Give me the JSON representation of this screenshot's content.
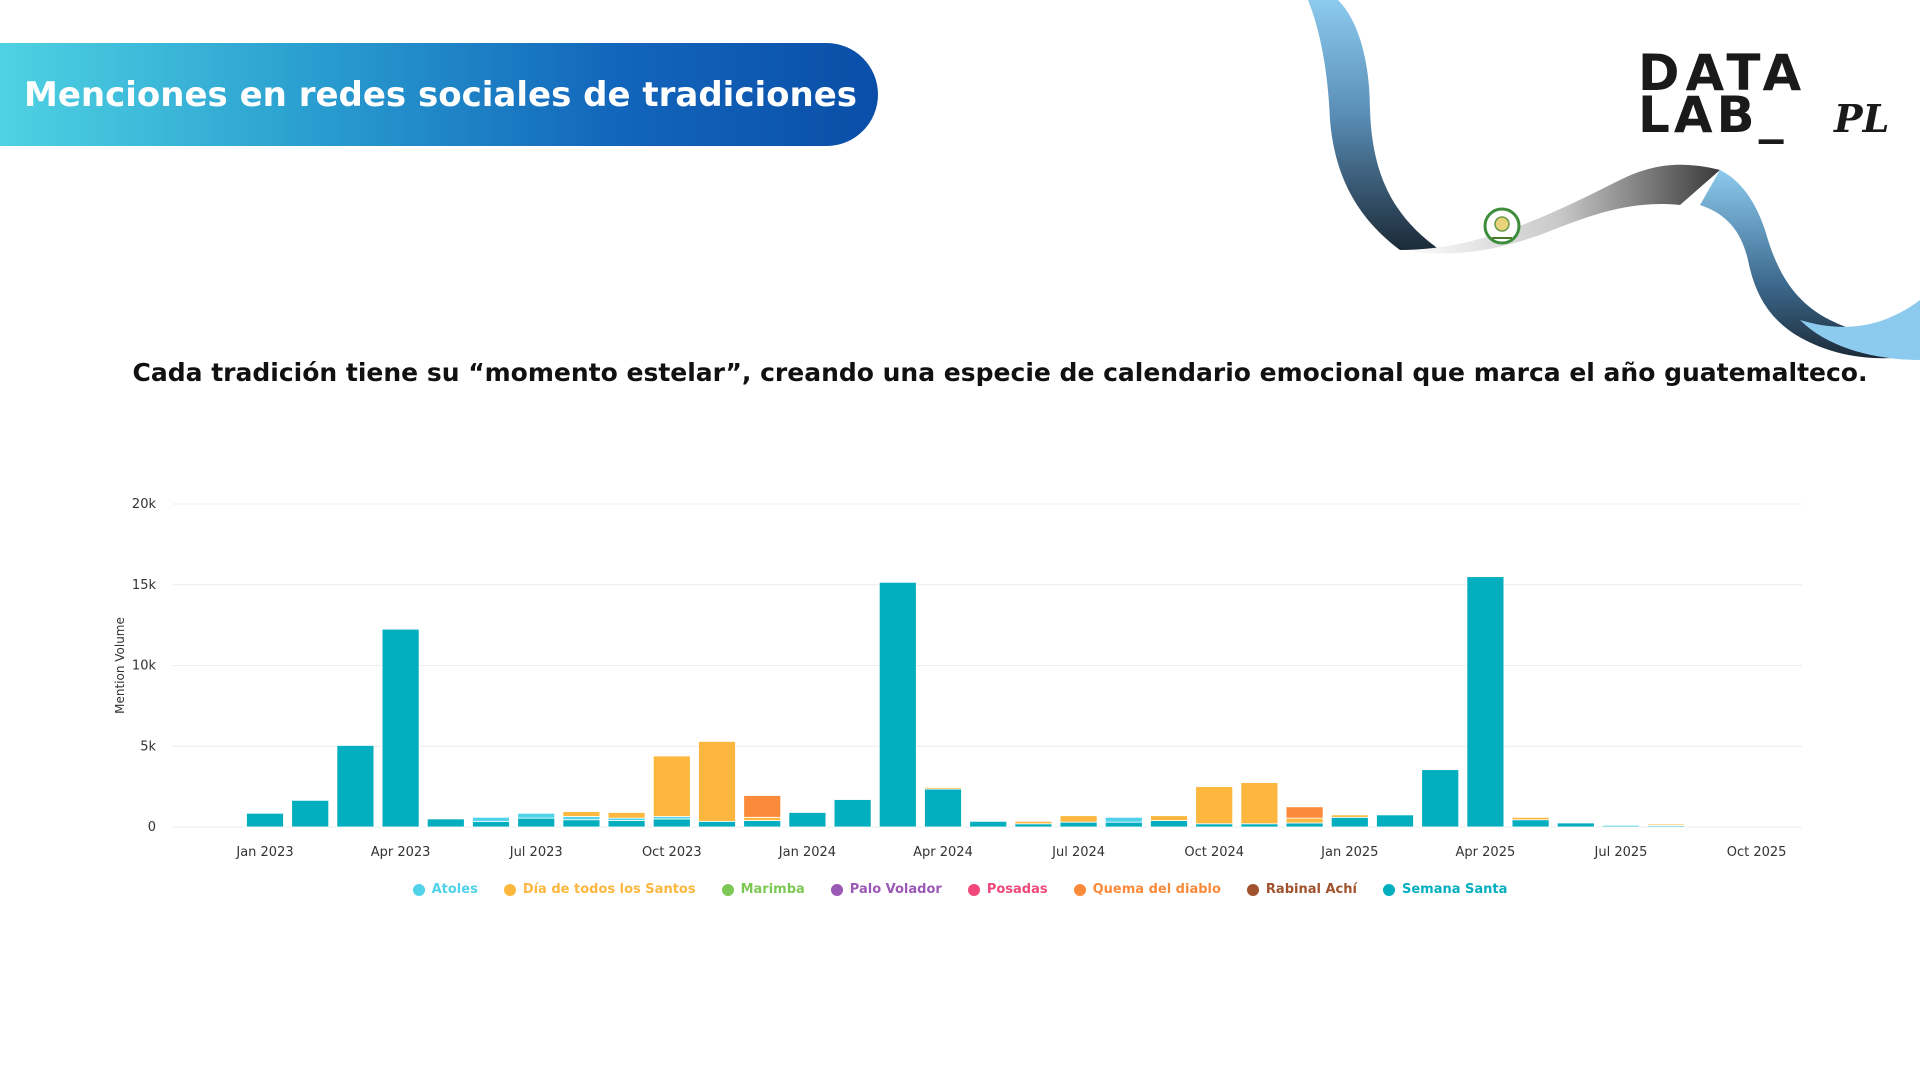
{
  "header": {
    "title": "Menciones en redes sociales de tradiciones"
  },
  "logo": {
    "line1": "DATA",
    "line2": "LAB_",
    "suffix": "PL"
  },
  "subtitle": "Cada tradición tiene su “momento estelar”, creando una especie de calendario emocional que marca el año guatemalteco.",
  "colors": {
    "banner_start": "#4fd2e2",
    "banner_end": "#0a4ea8",
    "ribbon_blue": "#8ccaee",
    "ribbon_dark": "#1c2a38"
  },
  "chart_data": {
    "type": "bar",
    "stacked": true,
    "ylabel": "Mention Volume",
    "xlabel": "",
    "ylim": [
      0,
      20000
    ],
    "yticks": [
      {
        "value": 0,
        "label": "0"
      },
      {
        "value": 5000,
        "label": "5k"
      },
      {
        "value": 10000,
        "label": "10k"
      },
      {
        "value": 15000,
        "label": "15k"
      },
      {
        "value": 20000,
        "label": "20k"
      }
    ],
    "xticks": [
      {
        "index": 0,
        "label": "Jan 2023"
      },
      {
        "index": 3,
        "label": "Apr 2023"
      },
      {
        "index": 6,
        "label": "Jul 2023"
      },
      {
        "index": 9,
        "label": "Oct 2023"
      },
      {
        "index": 12,
        "label": "Jan 2024"
      },
      {
        "index": 15,
        "label": "Apr 2024"
      },
      {
        "index": 18,
        "label": "Jul 2024"
      },
      {
        "index": 21,
        "label": "Oct 2024"
      },
      {
        "index": 24,
        "label": "Jan 2025"
      },
      {
        "index": 27,
        "label": "Apr 2025"
      },
      {
        "index": 30,
        "label": "Jul 2025"
      },
      {
        "index": 33,
        "label": "Oct 2025"
      }
    ],
    "categories": [
      "2023-01",
      "2023-02",
      "2023-03",
      "2023-04",
      "2023-05",
      "2023-06",
      "2023-07",
      "2023-08",
      "2023-09",
      "2023-10",
      "2023-11",
      "2023-12",
      "2024-01",
      "2024-02",
      "2024-03",
      "2024-04",
      "2024-05",
      "2024-06",
      "2024-07",
      "2024-08",
      "2024-09",
      "2024-10",
      "2024-11",
      "2024-12",
      "2025-01",
      "2025-02",
      "2025-03",
      "2025-04",
      "2025-05",
      "2025-06",
      "2025-07",
      "2025-08"
    ],
    "grid": true,
    "legend_position": "bottom",
    "series": [
      {
        "name": "Semana Santa",
        "color": "#03aebe",
        "values": [
          850,
          1650,
          5050,
          12250,
          500,
          350,
          550,
          450,
          400,
          500,
          350,
          400,
          900,
          1700,
          15150,
          2350,
          350,
          200,
          300,
          300,
          400,
          200,
          200,
          250,
          600,
          750,
          3550,
          15500,
          450,
          250,
          80,
          80
        ]
      },
      {
        "name": "Atoles",
        "color": "#4fd2ea",
        "values": [
          0,
          0,
          0,
          0,
          0,
          250,
          300,
          200,
          150,
          150,
          0,
          0,
          0,
          0,
          0,
          0,
          0,
          0,
          0,
          300,
          0,
          0,
          0,
          0,
          0,
          0,
          0,
          0,
          0,
          0,
          70,
          50
        ]
      },
      {
        "name": "Día de todos los Santos",
        "color": "#fdb73e",
        "values": [
          0,
          0,
          0,
          0,
          0,
          0,
          0,
          300,
          350,
          3750,
          4950,
          200,
          0,
          0,
          0,
          100,
          0,
          150,
          400,
          0,
          300,
          2300,
          2550,
          300,
          150,
          0,
          0,
          0,
          150,
          0,
          0,
          80
        ]
      },
      {
        "name": "Marimba",
        "color": "#7dc855",
        "values": [
          0,
          0,
          0,
          0,
          0,
          0,
          0,
          0,
          0,
          0,
          0,
          0,
          0,
          0,
          0,
          0,
          0,
          0,
          0,
          0,
          0,
          0,
          0,
          0,
          0,
          0,
          0,
          0,
          0,
          0,
          0,
          50
        ]
      },
      {
        "name": "Palo Volador",
        "color": "#9b59b6",
        "values": [
          0,
          0,
          0,
          0,
          0,
          0,
          0,
          0,
          0,
          0,
          0,
          0,
          0,
          0,
          0,
          0,
          0,
          0,
          0,
          0,
          0,
          0,
          0,
          0,
          0,
          0,
          0,
          0,
          0,
          0,
          0,
          0
        ]
      },
      {
        "name": "Posadas",
        "color": "#f0487a",
        "values": [
          0,
          0,
          0,
          0,
          0,
          0,
          0,
          0,
          0,
          0,
          0,
          0,
          0,
          0,
          0,
          0,
          0,
          0,
          0,
          0,
          0,
          0,
          0,
          0,
          0,
          0,
          0,
          0,
          0,
          0,
          0,
          0
        ]
      },
      {
        "name": "Quema del diablo",
        "color": "#fb8b3a",
        "values": [
          0,
          0,
          0,
          0,
          0,
          0,
          0,
          0,
          0,
          0,
          0,
          1350,
          0,
          0,
          0,
          0,
          0,
          0,
          0,
          0,
          0,
          0,
          0,
          700,
          0,
          0,
          0,
          0,
          0,
          0,
          0,
          0
        ]
      },
      {
        "name": "Rabinal Achí",
        "color": "#a0522d",
        "values": [
          0,
          0,
          0,
          0,
          0,
          0,
          0,
          0,
          0,
          0,
          0,
          0,
          0,
          0,
          0,
          0,
          0,
          0,
          0,
          0,
          0,
          0,
          0,
          0,
          0,
          0,
          0,
          0,
          0,
          0,
          0,
          0
        ]
      }
    ]
  },
  "legend": [
    {
      "label": "Atoles",
      "color": "#4fd2ea"
    },
    {
      "label": "Día de todos los Santos",
      "color": "#fdb73e"
    },
    {
      "label": "Marimba",
      "color": "#7dc855"
    },
    {
      "label": "Palo Volador",
      "color": "#9b59b6"
    },
    {
      "label": "Posadas",
      "color": "#f0487a"
    },
    {
      "label": "Quema del diablo",
      "color": "#fb8b3a"
    },
    {
      "label": "Rabinal Achí",
      "color": "#a0522d"
    },
    {
      "label": "Semana Santa",
      "color": "#03aebe"
    }
  ]
}
